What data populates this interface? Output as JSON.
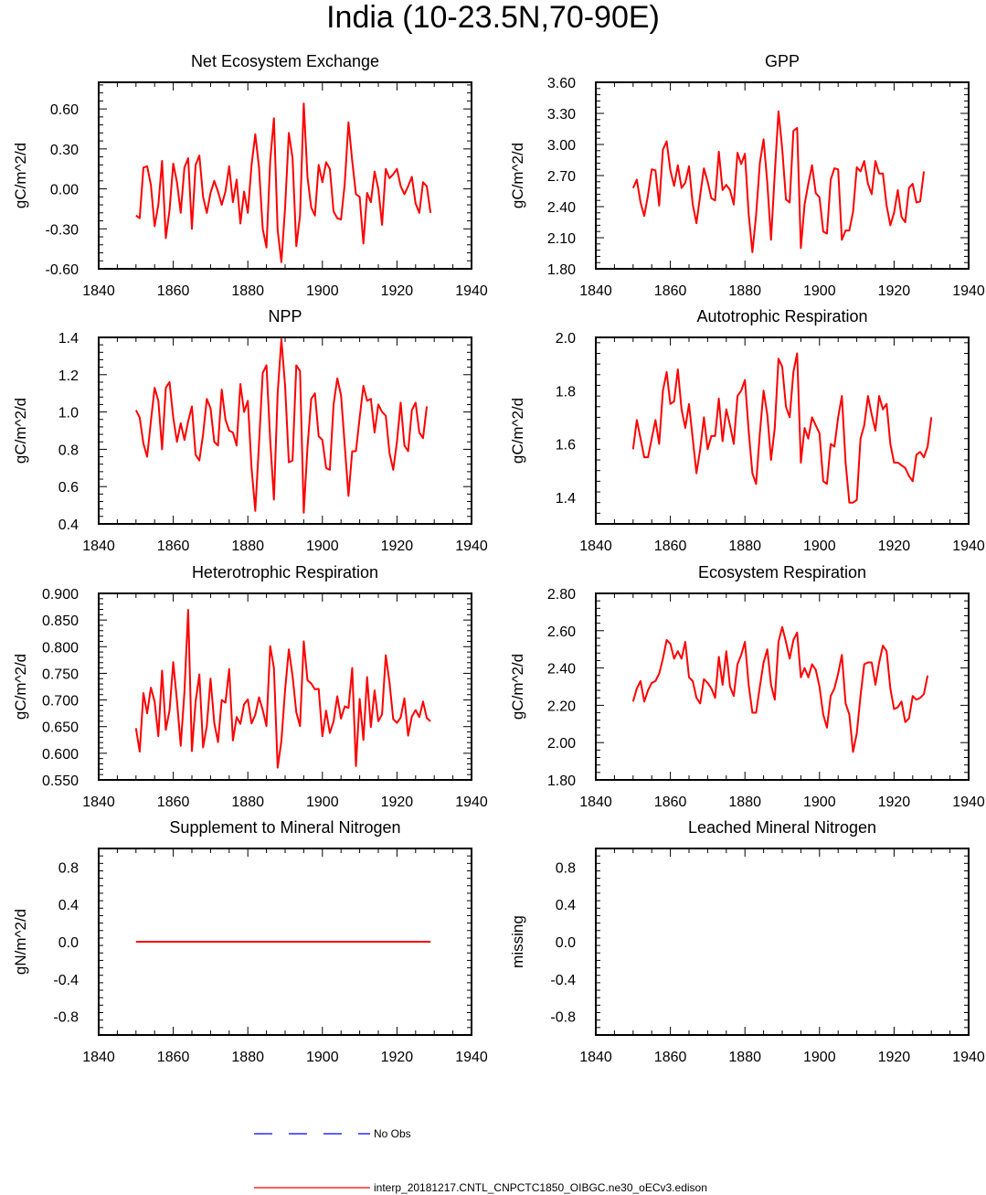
{
  "title": "India (10-23.5N,70-90E)",
  "colors": {
    "model": "#ff0000",
    "obs": "#0000ff",
    "axis": "#000000"
  },
  "legend": {
    "obs_label": "No Obs",
    "model_label": "interp_20181217.CNTL_CNPCTC1850_OIBGC.ne30_oECv3.edison"
  },
  "chart_data": [
    {
      "type": "line",
      "title": "Net Ecosystem Exchange",
      "ylabel": "gC/m^2/d",
      "xlim": [
        1840,
        1940
      ],
      "xticks": [
        1840,
        1860,
        1880,
        1900,
        1920,
        1940
      ],
      "ylim": [
        -0.6,
        0.8
      ],
      "yticks": [
        -0.6,
        -0.3,
        0.0,
        0.3,
        0.6
      ],
      "ytick_labels": [
        "-0.60",
        "-0.30",
        "0.00",
        "0.30",
        "0.60"
      ],
      "x_start": 1850,
      "values": [
        -0.2,
        -0.22,
        0.16,
        0.17,
        0.03,
        -0.28,
        -0.12,
        0.21,
        -0.37,
        -0.16,
        0.19,
        0.05,
        -0.18,
        0.16,
        0.23,
        -0.3,
        0.18,
        0.25,
        -0.06,
        -0.18,
        -0.03,
        0.06,
        -0.02,
        -0.12,
        -0.02,
        0.17,
        -0.1,
        0.07,
        -0.26,
        -0.02,
        -0.18,
        0.18,
        0.41,
        0.16,
        -0.3,
        -0.44,
        0.21,
        0.53,
        -0.31,
        -0.55,
        -0.14,
        0.42,
        0.23,
        -0.43,
        -0.2,
        0.64,
        0.09,
        -0.14,
        -0.2,
        0.18,
        0.05,
        0.2,
        0.15,
        -0.17,
        -0.22,
        -0.23,
        0.04,
        0.5,
        0.21,
        -0.04,
        -0.06,
        -0.41,
        -0.03,
        -0.1,
        0.13,
        0.0,
        -0.27,
        0.15,
        0.08,
        0.11,
        0.15,
        0.02,
        -0.04,
        0.02,
        0.09,
        -0.11,
        -0.18,
        0.05,
        0.02,
        -0.18
      ]
    },
    {
      "type": "line",
      "title": "GPP",
      "ylabel": "gC/m^2/d",
      "xlim": [
        1840,
        1940
      ],
      "xticks": [
        1840,
        1860,
        1880,
        1900,
        1920,
        1940
      ],
      "ylim": [
        1.8,
        3.6
      ],
      "yticks": [
        1.8,
        2.1,
        2.4,
        2.7,
        3.0,
        3.3,
        3.6
      ],
      "ytick_labels": [
        "1.80",
        "2.10",
        "2.40",
        "2.70",
        "3.00",
        "3.30",
        "3.60"
      ],
      "x_start": 1850,
      "values": [
        2.58,
        2.66,
        2.44,
        2.31,
        2.51,
        2.76,
        2.75,
        2.41,
        2.95,
        3.03,
        2.75,
        2.6,
        2.8,
        2.58,
        2.63,
        2.79,
        2.42,
        2.24,
        2.51,
        2.77,
        2.64,
        2.48,
        2.46,
        2.93,
        2.56,
        2.61,
        2.56,
        2.42,
        2.92,
        2.81,
        2.91,
        2.33,
        1.96,
        2.32,
        2.82,
        3.05,
        2.63,
        2.08,
        2.72,
        3.32,
        2.96,
        2.47,
        2.44,
        3.13,
        3.16,
        2.0,
        2.42,
        2.62,
        2.8,
        2.53,
        2.49,
        2.16,
        2.14,
        2.66,
        2.77,
        2.76,
        2.08,
        2.17,
        2.17,
        2.35,
        2.78,
        2.74,
        2.84,
        2.62,
        2.52,
        2.84,
        2.72,
        2.72,
        2.41,
        2.22,
        2.34,
        2.56,
        2.3,
        2.25,
        2.58,
        2.62,
        2.44,
        2.45,
        2.74
      ]
    },
    {
      "type": "line",
      "title": "NPP",
      "ylabel": "gC/m^2/d",
      "xlim": [
        1840,
        1940
      ],
      "xticks": [
        1840,
        1860,
        1880,
        1900,
        1920,
        1940
      ],
      "ylim": [
        0.4,
        1.4
      ],
      "yticks": [
        0.4,
        0.6,
        0.8,
        1.0,
        1.2,
        1.4
      ],
      "ytick_labels": [
        "0.4",
        "0.6",
        "0.8",
        "1.0",
        "1.2",
        "1.4"
      ],
      "x_start": 1850,
      "values": [
        1.01,
        0.97,
        0.83,
        0.76,
        0.95,
        1.13,
        1.06,
        0.8,
        1.13,
        1.16,
        0.97,
        0.84,
        0.94,
        0.85,
        0.95,
        1.03,
        0.77,
        0.74,
        0.88,
        1.07,
        1.02,
        0.84,
        0.82,
        1.12,
        0.96,
        0.9,
        0.89,
        0.82,
        1.15,
        1.0,
        1.06,
        0.7,
        0.47,
        0.83,
        1.21,
        1.25,
        0.85,
        0.53,
        1.1,
        1.39,
        1.14,
        0.73,
        0.74,
        1.25,
        1.22,
        0.46,
        0.81,
        1.07,
        1.1,
        0.87,
        0.85,
        0.7,
        0.69,
        1.04,
        1.18,
        1.09,
        0.82,
        0.55,
        0.79,
        0.79,
        0.97,
        1.14,
        1.06,
        1.07,
        0.89,
        1.04,
        1.0,
        0.98,
        0.78,
        0.69,
        0.84,
        1.05,
        0.82,
        0.79,
        1.01,
        1.05,
        0.89,
        0.86,
        1.03
      ]
    },
    {
      "type": "line",
      "title": "Autotrophic Respiration",
      "ylabel": "gC/m^2/d",
      "xlim": [
        1840,
        1940
      ],
      "xticks": [
        1840,
        1860,
        1880,
        1900,
        1920,
        1940
      ],
      "ylim": [
        1.3,
        2.0
      ],
      "yticks": [
        1.4,
        1.6,
        1.8,
        2.0
      ],
      "ytick_labels": [
        "1.4",
        "1.6",
        "1.8",
        "2.0"
      ],
      "x_start": 1850,
      "values": [
        1.58,
        1.69,
        1.62,
        1.55,
        1.55,
        1.62,
        1.69,
        1.6,
        1.8,
        1.87,
        1.75,
        1.76,
        1.88,
        1.73,
        1.66,
        1.75,
        1.62,
        1.49,
        1.58,
        1.7,
        1.58,
        1.63,
        1.63,
        1.77,
        1.61,
        1.73,
        1.67,
        1.6,
        1.78,
        1.8,
        1.84,
        1.65,
        1.49,
        1.45,
        1.64,
        1.8,
        1.71,
        1.54,
        1.66,
        1.92,
        1.89,
        1.74,
        1.7,
        1.87,
        1.94,
        1.53,
        1.66,
        1.62,
        1.7,
        1.67,
        1.64,
        1.46,
        1.45,
        1.6,
        1.59,
        1.7,
        1.78,
        1.53,
        1.38,
        1.38,
        1.39,
        1.62,
        1.67,
        1.78,
        1.71,
        1.65,
        1.78,
        1.73,
        1.75,
        1.6,
        1.53,
        1.53,
        1.52,
        1.51,
        1.48,
        1.46,
        1.56,
        1.57,
        1.55,
        1.59,
        1.7
      ]
    },
    {
      "type": "line",
      "title": "Heterotrophic Respiration",
      "ylabel": "gC/m^2/d",
      "xlim": [
        1840,
        1940
      ],
      "xticks": [
        1840,
        1860,
        1880,
        1900,
        1920,
        1940
      ],
      "ylim": [
        0.55,
        0.9
      ],
      "yticks": [
        0.55,
        0.6,
        0.65,
        0.7,
        0.75,
        0.8,
        0.85,
        0.9
      ],
      "ytick_labels": [
        "0.550",
        "0.600",
        "0.650",
        "0.700",
        "0.750",
        "0.800",
        "0.850",
        "0.900"
      ],
      "x_start": 1850,
      "values": [
        0.647,
        0.603,
        0.713,
        0.675,
        0.723,
        0.697,
        0.632,
        0.755,
        0.644,
        0.68,
        0.771,
        0.698,
        0.614,
        0.715,
        0.869,
        0.604,
        0.697,
        0.748,
        0.611,
        0.651,
        0.74,
        0.657,
        0.621,
        0.7,
        0.695,
        0.758,
        0.624,
        0.668,
        0.655,
        0.692,
        0.701,
        0.656,
        0.672,
        0.705,
        0.681,
        0.651,
        0.801,
        0.76,
        0.573,
        0.623,
        0.719,
        0.795,
        0.745,
        0.677,
        0.651,
        0.81,
        0.737,
        0.731,
        0.72,
        0.721,
        0.632,
        0.68,
        0.638,
        0.66,
        0.707,
        0.665,
        0.688,
        0.685,
        0.76,
        0.576,
        0.702,
        0.625,
        0.743,
        0.649,
        0.718,
        0.66,
        0.673,
        0.784,
        0.733,
        0.664,
        0.657,
        0.667,
        0.703,
        0.633,
        0.669,
        0.681,
        0.668,
        0.697,
        0.666,
        0.66
      ]
    },
    {
      "type": "line",
      "title": "Ecosystem Respiration",
      "ylabel": "gC/m^2/d",
      "xlim": [
        1840,
        1940
      ],
      "xticks": [
        1840,
        1860,
        1880,
        1900,
        1920,
        1940
      ],
      "ylim": [
        1.8,
        2.8
      ],
      "yticks": [
        1.8,
        2.0,
        2.2,
        2.4,
        2.6,
        2.8
      ],
      "ytick_labels": [
        "1.80",
        "2.00",
        "2.20",
        "2.40",
        "2.60",
        "2.80"
      ],
      "x_start": 1850,
      "values": [
        2.22,
        2.29,
        2.33,
        2.22,
        2.28,
        2.32,
        2.33,
        2.37,
        2.45,
        2.55,
        2.53,
        2.45,
        2.49,
        2.45,
        2.54,
        2.35,
        2.33,
        2.24,
        2.21,
        2.34,
        2.32,
        2.29,
        2.24,
        2.46,
        2.31,
        2.49,
        2.3,
        2.25,
        2.42,
        2.47,
        2.54,
        2.31,
        2.16,
        2.16,
        2.3,
        2.43,
        2.5,
        2.31,
        2.23,
        2.54,
        2.62,
        2.54,
        2.45,
        2.55,
        2.59,
        2.35,
        2.4,
        2.35,
        2.42,
        2.39,
        2.3,
        2.15,
        2.08,
        2.25,
        2.29,
        2.37,
        2.47,
        2.21,
        2.15,
        1.95,
        2.05,
        2.25,
        2.42,
        2.43,
        2.43,
        2.31,
        2.43,
        2.52,
        2.49,
        2.29,
        2.18,
        2.19,
        2.22,
        2.11,
        2.13,
        2.25,
        2.23,
        2.24,
        2.26,
        2.36
      ]
    },
    {
      "type": "line",
      "title": "Supplement to Mineral Nitrogen",
      "ylabel": "gN/m^2/d",
      "xlim": [
        1840,
        1940
      ],
      "xticks": [
        1840,
        1860,
        1880,
        1900,
        1920,
        1940
      ],
      "ylim": [
        -1.0,
        1.0
      ],
      "yticks": [
        -0.8,
        -0.4,
        0.0,
        0.4,
        0.8
      ],
      "ytick_labels": [
        "-0.8",
        "-0.4",
        "0.0",
        "0.4",
        "0.8"
      ],
      "x_start": 1850,
      "values": [
        0,
        0,
        0,
        0,
        0,
        0,
        0,
        0,
        0,
        0,
        0,
        0,
        0,
        0,
        0,
        0,
        0,
        0,
        0,
        0,
        0,
        0,
        0,
        0,
        0,
        0,
        0,
        0,
        0,
        0,
        0,
        0,
        0,
        0,
        0,
        0,
        0,
        0,
        0,
        0,
        0,
        0,
        0,
        0,
        0,
        0,
        0,
        0,
        0,
        0,
        0,
        0,
        0,
        0,
        0,
        0,
        0,
        0,
        0,
        0,
        0,
        0,
        0,
        0,
        0,
        0,
        0,
        0,
        0,
        0,
        0,
        0,
        0,
        0,
        0,
        0,
        0,
        0,
        0,
        0
      ]
    },
    {
      "type": "line",
      "title": "Leached Mineral Nitrogen",
      "ylabel": "missing",
      "xlim": [
        1840,
        1940
      ],
      "xticks": [
        1840,
        1860,
        1880,
        1900,
        1920,
        1940
      ],
      "ylim": [
        -1.0,
        1.0
      ],
      "yticks": [
        -0.8,
        -0.4,
        0.0,
        0.4,
        0.8
      ],
      "ytick_labels": [
        "-0.8",
        "-0.4",
        "0.0",
        "0.4",
        "0.8"
      ],
      "x_start": 1850,
      "values": []
    }
  ]
}
